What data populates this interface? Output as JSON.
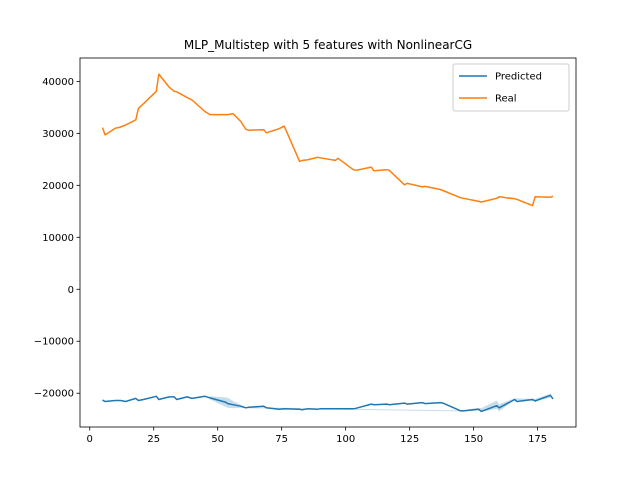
{
  "chart_data": {
    "type": "line",
    "title": "MLP_Multistep with 5 features with NonlinearCG",
    "xlabel": "",
    "ylabel": "",
    "xlim": [
      -3.8,
      190
    ],
    "ylim": [
      -26500,
      44500
    ],
    "x_ticks": [
      0,
      25,
      50,
      75,
      100,
      125,
      150,
      175
    ],
    "y_ticks": [
      -20000,
      -10000,
      0,
      10000,
      20000,
      30000,
      40000
    ],
    "grid": false,
    "legend_position": "top-right",
    "series": [
      {
        "name": "Predicted",
        "color": "#1f77b4",
        "x": [
          5,
          6,
          10,
          12,
          14,
          18,
          19,
          21,
          26,
          27,
          31,
          33,
          34,
          38,
          40,
          45,
          47,
          53,
          54,
          56,
          59,
          61,
          62,
          68,
          69,
          74,
          76,
          82,
          83,
          85,
          89,
          90,
          96,
          97,
          103,
          104,
          110,
          111,
          116,
          117,
          123,
          124,
          130,
          131,
          137,
          138,
          145,
          146,
          152,
          153,
          159,
          160,
          166,
          167,
          173,
          174,
          180,
          181
        ],
        "y": [
          -21300,
          -21600,
          -21400,
          -21400,
          -21600,
          -21000,
          -21400,
          -21200,
          -20600,
          -21200,
          -20700,
          -20700,
          -21200,
          -20700,
          -21000,
          -20600,
          -20900,
          -21700,
          -22000,
          -22200,
          -22500,
          -22800,
          -22700,
          -22500,
          -22800,
          -23100,
          -23000,
          -23100,
          -23200,
          -23000,
          -23100,
          -23000,
          -23000,
          -23000,
          -23000,
          -22900,
          -22100,
          -22200,
          -22100,
          -22200,
          -21900,
          -22100,
          -21800,
          -22000,
          -21800,
          -21900,
          -23400,
          -23400,
          -23100,
          -23500,
          -22400,
          -22800,
          -21200,
          -21600,
          -21200,
          -21500,
          -20400,
          -21100
        ],
        "band_x": [
          47,
          53,
          54,
          56,
          59,
          61,
          145,
          152,
          153,
          159,
          160,
          166,
          174,
          180
        ],
        "band_low": [
          -21200,
          -22600,
          -22800,
          -22900,
          -22800,
          -22900,
          -23500,
          -23300,
          -23600,
          -23000,
          -23500,
          -21300,
          -21500,
          -20900
        ],
        "band_high": [
          -20600,
          -20800,
          -20900,
          -21500,
          -22200,
          -22700,
          -23300,
          -22800,
          -22900,
          -21400,
          -22100,
          -21000,
          -21100,
          -20100
        ]
      },
      {
        "name": "Real",
        "color": "#ff7f0e",
        "x": [
          5,
          6,
          10,
          12,
          14,
          18,
          19,
          21,
          26,
          27,
          31,
          33,
          34,
          38,
          40,
          45,
          47,
          53,
          54,
          56,
          59,
          61,
          62,
          68,
          69,
          74,
          76,
          82,
          83,
          85,
          89,
          90,
          96,
          97,
          103,
          104,
          110,
          111,
          116,
          117,
          123,
          124,
          130,
          131,
          137,
          138,
          145,
          146,
          152,
          153,
          159,
          160,
          166,
          167,
          173,
          174,
          180,
          181
        ],
        "y": [
          31100,
          29700,
          31000,
          31200,
          31600,
          32600,
          34800,
          35700,
          38100,
          41400,
          38900,
          38100,
          38000,
          36900,
          36400,
          34200,
          33600,
          33600,
          33600,
          33800,
          32300,
          30800,
          30600,
          30700,
          30100,
          30900,
          31400,
          24600,
          24800,
          24900,
          25400,
          25300,
          24800,
          25200,
          23000,
          22900,
          23500,
          22800,
          23000,
          22900,
          20100,
          20400,
          19700,
          19800,
          19200,
          19000,
          17600,
          17500,
          16900,
          16800,
          17500,
          17800,
          17400,
          17300,
          16100,
          17800,
          17700,
          17900
        ]
      }
    ]
  }
}
